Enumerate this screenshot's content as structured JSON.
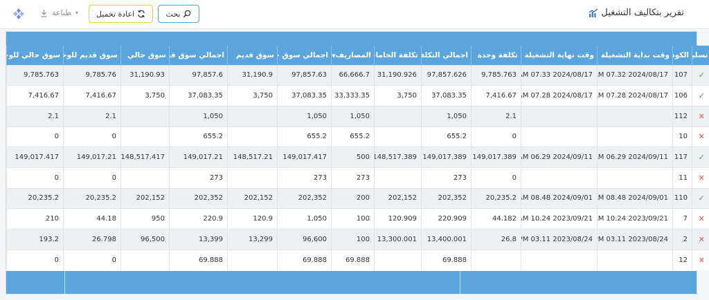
{
  "header": {
    "title": "تقرير بتكاليف التشغيل",
    "search_label": "بحث",
    "reload_label": "اعادة تحميل",
    "print_label": "طباعة"
  },
  "columns": [
    "تسليم",
    "الكود",
    "وقت بداية التشغيلة",
    "وقت نهاية التشغيلة",
    "تكلفة وحدة",
    "اجمالي التكلفة",
    "تكلفة الخامات",
    "المصاريف",
    "اجمالي سوق حالي",
    "سوق قديم",
    "اجمالي سوق قديم",
    "سوق حالي",
    "سوق قديم للوحدة",
    "سوق حالي للوحدة"
  ],
  "rows": [
    {
      "status": "ok",
      "cells": [
        "107",
        "2024/08/17 07.32 AM",
        "2024/08/17 07.33 AM",
        "9,785.763",
        "97,857.626",
        "31,190.926",
        "66,666.7",
        "97,857.63",
        "31,190.9",
        "97,857.6",
        "31,190.93",
        "9,785.76",
        "9,785.763"
      ]
    },
    {
      "status": "ok",
      "cells": [
        "106",
        "2024/08/17 07.28 AM",
        "2024/08/17 07.28 AM",
        "7,416.67",
        "37,083.35",
        "3,750",
        "33,333.35",
        "37,083.35",
        "3,750",
        "37,083.35",
        "3,750",
        "7,416.67",
        "7,416.67"
      ]
    },
    {
      "status": "no",
      "cells": [
        "112",
        "",
        "",
        "2.1",
        "1,050",
        "",
        "1,050",
        "1,050",
        "",
        "1,050",
        "",
        "2.1",
        "2.1"
      ]
    },
    {
      "status": "no",
      "cells": [
        "10",
        "",
        "",
        "0",
        "655.2",
        "",
        "655.2",
        "655.2",
        "",
        "655.2",
        "",
        "0",
        "0"
      ]
    },
    {
      "status": "ok",
      "cells": [
        "117",
        "2024/09/11 06.29 AM",
        "2024/09/11 06.29 AM",
        "149,017.389",
        "149,017.389",
        "148,517.389",
        "500",
        "149,017.417",
        "148,517.21",
        "149,017.21",
        "148,517.417",
        "149,017.21",
        "149,017.417"
      ]
    },
    {
      "status": "no",
      "cells": [
        "11",
        "",
        "",
        "0",
        "273",
        "",
        "273",
        "273",
        "",
        "273",
        "",
        "0",
        "0"
      ]
    },
    {
      "status": "ok",
      "cells": [
        "110",
        "2024/09/01 08.48 AM",
        "2024/09/01 08.48 AM",
        "20,235.2",
        "202,352",
        "202,152",
        "200",
        "202,352",
        "202,152",
        "202,352",
        "202,152",
        "20,235.2",
        "20,235.2"
      ]
    },
    {
      "status": "no",
      "cells": [
        "7",
        "2023/09/21 10.24 AM",
        "2023/09/21 10.24 AM",
        "44.182",
        "220.909",
        "120.909",
        "100",
        "1,050",
        "120.9",
        "220.9",
        "950",
        "44.18",
        "210"
      ]
    },
    {
      "status": "no",
      "cells": [
        "2",
        "2023/08/24 03.11 PM",
        "2023/08/24 03.11 PM",
        "26.8",
        "13,400.001",
        "13,300.001",
        "100",
        "96,600",
        "13,299",
        "13,399",
        "96,500",
        "26.798",
        "193.2"
      ]
    },
    {
      "status": "no",
      "cells": [
        "12",
        "",
        "",
        "",
        "69.888",
        "",
        "69.888",
        "69.888",
        "",
        "69.888",
        "",
        "0",
        "0"
      ]
    }
  ],
  "icons": {
    "chart": "chart-icon",
    "search": "search-icon",
    "reload": "reload-icon",
    "print": "download-icon",
    "app": "app-menu-icon",
    "ok": "check-icon",
    "no": "cross-icon"
  },
  "colors": {
    "header_blue": "#5aa5de",
    "ok_green": "#3aa655",
    "no_red": "#d9534f",
    "search_border": "#4aa3df",
    "reload_border": "#f2c94c"
  }
}
